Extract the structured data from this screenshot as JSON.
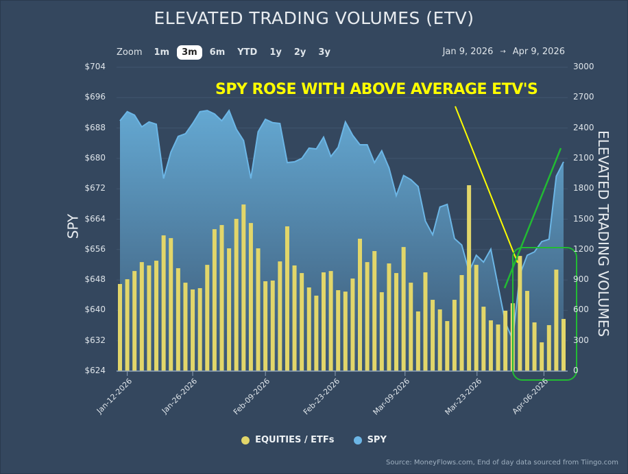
{
  "title": "ELEVATED TRADING VOLUMES (ETV)",
  "toolbar": {
    "zoom_label": "Zoom",
    "buttons": [
      "1m",
      "3m",
      "6m",
      "YTD",
      "1y",
      "2y",
      "3y"
    ],
    "active": "3m",
    "range_from": "Jan 9, 2026",
    "range_arrow": "→",
    "range_to": "Apr 9, 2026"
  },
  "chart_data": {
    "type": "bar+area",
    "title": "ELEVATED TRADING VOLUMES (ETV)",
    "ylabel_left": "SPY",
    "ylabel_right": "ELEVATED TRADING VOLUMES",
    "ylim_left": [
      624,
      704
    ],
    "ylim_right": [
      0,
      3000
    ],
    "yticks_left": [
      "$704",
      "$696",
      "$688",
      "$680",
      "$672",
      "$664",
      "$656",
      "$648",
      "$640",
      "$632",
      "$624"
    ],
    "yticks_right": [
      "3000",
      "2700",
      "2400",
      "2100",
      "1800",
      "1500",
      "1200",
      "900",
      "600",
      "300",
      "0"
    ],
    "xticks": [
      {
        "label": "Jan-12-2026",
        "index": 1
      },
      {
        "label": "Jan-26-2026",
        "index": 10
      },
      {
        "label": "Feb-09-2026",
        "index": 20
      },
      {
        "label": "Feb-23-2026",
        "index": 29.6
      },
      {
        "label": "Mar-09-2026",
        "index": 39.2
      },
      {
        "label": "Mar-23-2026",
        "index": 49.1
      },
      {
        "label": "Apr-06-2026",
        "index": 58.3
      }
    ],
    "grid": true,
    "legend_position": "bottom",
    "series": [
      {
        "name": "EQUITIES / ETFs",
        "type": "bar",
        "axis": "right",
        "color": "#e2d66a",
        "values": [
          860,
          907,
          988,
          1076,
          1043,
          1090,
          1340,
          1313,
          1016,
          873,
          806,
          819,
          1049,
          1401,
          1442,
          1212,
          1503,
          1645,
          1462,
          1212,
          887,
          894,
          1083,
          1429,
          1043,
          968,
          826,
          745,
          975,
          988,
          799,
          785,
          914,
          1307,
          1076,
          1185,
          779,
          1063,
          968,
          1225,
          873,
          589,
          975,
          704,
          609,
          494,
          704,
          948,
          1835,
          1049,
          636,
          501,
          460,
          596,
          670,
          1137,
          792,
          481,
          284,
          454,
          1002,
          515
        ]
      },
      {
        "name": "SPY",
        "type": "area",
        "axis": "left",
        "color": "#6cb6e6",
        "values": [
          689.9,
          692.3,
          691.4,
          688.3,
          689.6,
          689.0,
          674.7,
          681.6,
          685.8,
          686.5,
          689.2,
          692.3,
          692.6,
          691.7,
          689.9,
          692.6,
          687.7,
          684.7,
          674.7,
          687.0,
          690.3,
          689.4,
          689.2,
          678.9,
          679.1,
          680.0,
          682.7,
          682.5,
          685.6,
          680.5,
          682.9,
          689.6,
          686.1,
          683.6,
          683.6,
          678.9,
          682.0,
          677.5,
          670.2,
          675.5,
          674.4,
          672.6,
          663.5,
          659.9,
          667.2,
          667.9,
          658.9,
          657.2,
          650.2,
          654.5,
          652.7,
          656.1,
          646.4,
          636.8,
          632.3,
          649.5,
          654.5,
          655.4,
          658.1,
          658.7,
          675.3,
          679.1
        ]
      }
    ],
    "annotation": "SPY ROSE WITH ABOVE AVERAGE ETV'S"
  },
  "legend": [
    "EQUITIES / ETFs",
    "SPY"
  ],
  "source": "Source: MoneyFlows.com, End of day data sourced from Tiingo.com"
}
